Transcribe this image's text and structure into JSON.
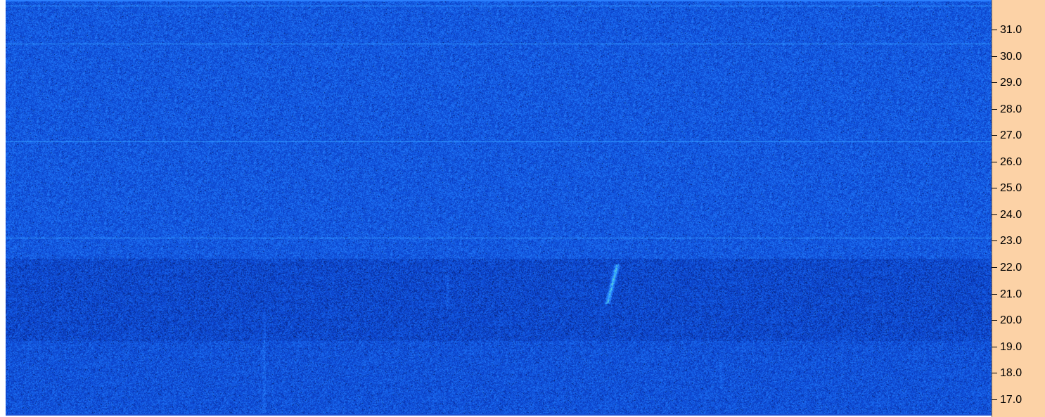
{
  "chart_data": {
    "type": "heatmap",
    "title": "",
    "xlabel": "",
    "ylabel": "",
    "y_axis_position": "right",
    "y_ticks": [
      31.0,
      30.0,
      29.0,
      28.0,
      27.0,
      26.0,
      25.0,
      24.0,
      23.0,
      22.0,
      21.0,
      20.0,
      19.0,
      18.0,
      17.0
    ],
    "y_tick_labels": [
      "31.0",
      "30.0",
      "29.0",
      "28.0",
      "27.0",
      "26.0",
      "25.0",
      "24.0",
      "23.0",
      "22.0",
      "21.0",
      "20.0",
      "19.0",
      "18.0",
      "17.0"
    ],
    "ylim": [
      16.35,
      32.15
    ],
    "colormap": [
      "#061e6e",
      "#0b3fc8",
      "#1560e8",
      "#2a86ff",
      "#39b4ff",
      "#66e0c0",
      "#d8f020"
    ],
    "horizontal_lines_y": [
      32.0,
      30.55,
      26.85,
      23.2
    ],
    "features": [
      {
        "name": "bright streak",
        "x_frac": 0.61,
        "y_range": [
          20.7,
          22.2
        ]
      },
      {
        "name": "faint vertical trace",
        "x_frac": 0.262,
        "y_range": [
          16.5,
          20.5
        ]
      },
      {
        "name": "faint vertical trace",
        "x_frac": 0.448,
        "y_range": [
          20.5,
          21.8
        ]
      },
      {
        "name": "faint vertical trace",
        "x_frac": 0.725,
        "y_range": [
          17.5,
          18.5
        ]
      }
    ],
    "grid": false,
    "legend": "none"
  },
  "colors": {
    "axis_background": "#fcd2a6",
    "spectrogram_base": "#1560e8",
    "tick_color": "#000000"
  }
}
